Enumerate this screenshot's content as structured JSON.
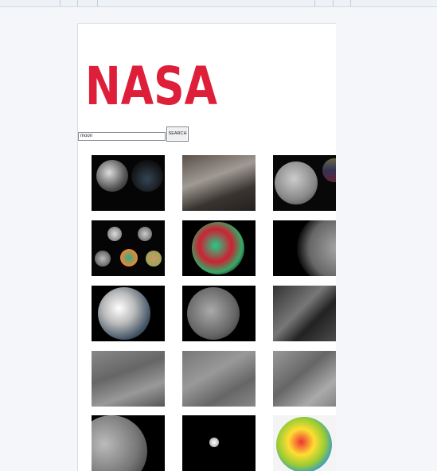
{
  "logo": "NASA",
  "search": {
    "query": "moon",
    "button": "SEARCH"
  }
}
